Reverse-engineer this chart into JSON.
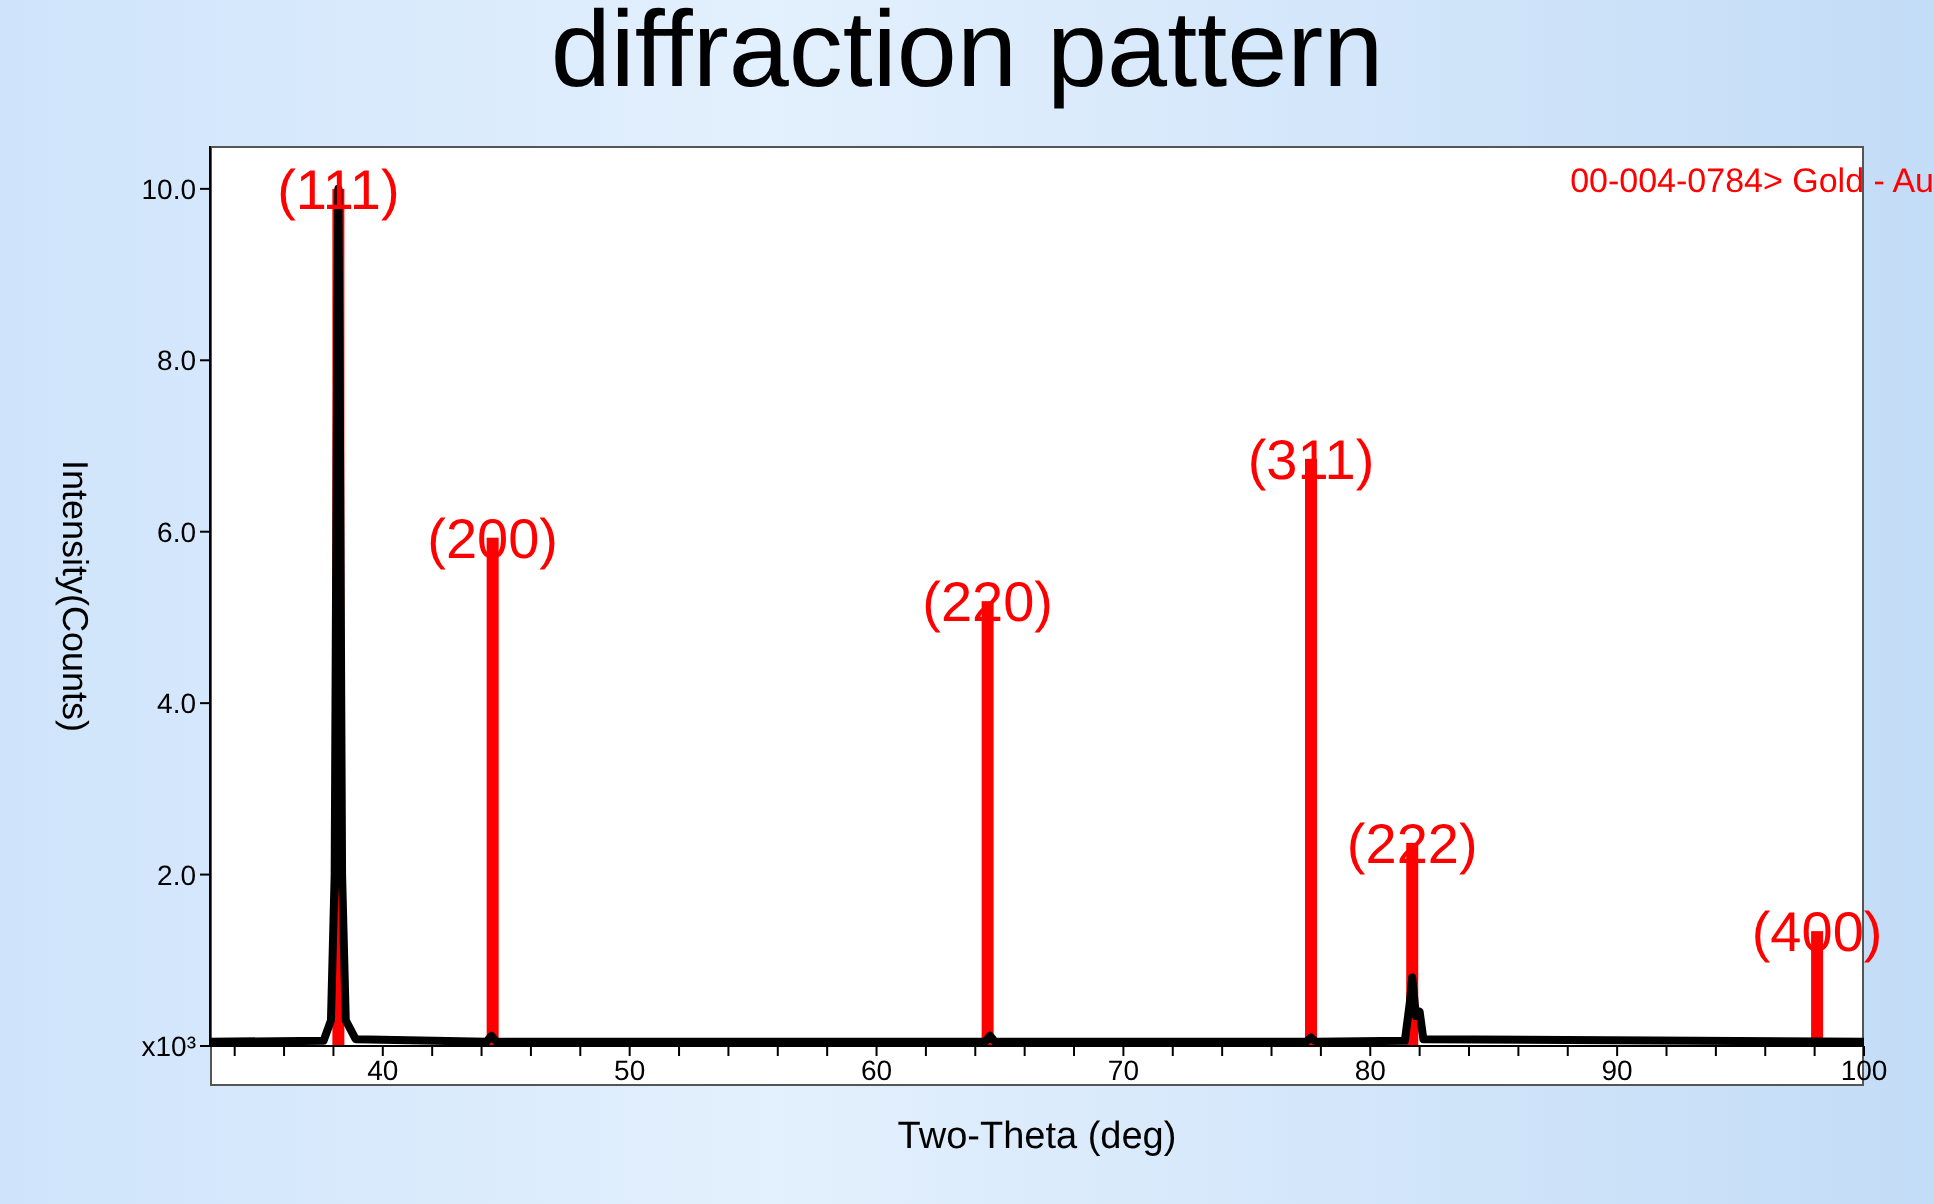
{
  "chart_data": {
    "type": "line",
    "title": "diffraction pattern",
    "xlabel": "Two-Theta (deg)",
    "ylabel": "Intensity(Counts)",
    "xlim": [
      33,
      100
    ],
    "xticks": [
      {
        "value": 34,
        "label": null
      },
      {
        "value": 36,
        "label": null
      },
      {
        "value": 38,
        "label": null
      },
      40,
      {
        "value": 42,
        "label": null
      },
      {
        "value": 44,
        "label": null
      },
      {
        "value": 46,
        "label": null
      },
      {
        "value": 48,
        "label": null
      },
      50,
      {
        "value": 52,
        "label": null
      },
      {
        "value": 54,
        "label": null
      },
      {
        "value": 56,
        "label": null
      },
      {
        "value": 58,
        "label": null
      },
      60,
      {
        "value": 62,
        "label": null
      },
      {
        "value": 64,
        "label": null
      },
      {
        "value": 66,
        "label": null
      },
      {
        "value": 68,
        "label": null
      },
      70,
      {
        "value": 72,
        "label": null
      },
      {
        "value": 74,
        "label": null
      },
      {
        "value": 76,
        "label": null
      },
      {
        "value": 78,
        "label": null
      },
      80,
      {
        "value": 82,
        "label": null
      },
      {
        "value": 84,
        "label": null
      },
      {
        "value": 86,
        "label": null
      },
      {
        "value": 88,
        "label": null
      },
      90,
      {
        "value": 92,
        "label": null
      },
      {
        "value": 94,
        "label": null
      },
      {
        "value": 96,
        "label": null
      },
      {
        "value": 98,
        "label": null
      },
      100
    ],
    "ylim": [
      0,
      10.5
    ],
    "yticks": [
      {
        "value": 0,
        "label": "x10³"
      },
      {
        "value": 2,
        "label": "2.0"
      },
      {
        "value": 4,
        "label": "4.0"
      },
      {
        "value": 6,
        "label": "6.0"
      },
      {
        "value": 8,
        "label": "8.0"
      },
      {
        "value": 10,
        "label": "10.0"
      }
    ],
    "grid": false,
    "legend": "top right",
    "marker": "none",
    "line_style": "solid",
    "annotations": [
      {
        "text": "(111)",
        "x": 38.2,
        "y": 10
      },
      {
        "text": "(200)",
        "x": 44.45,
        "y": 5.93
      },
      {
        "text": "(220)",
        "x": 64.5,
        "y": 5.19
      },
      {
        "text": "(311)",
        "x": 77.6,
        "y": 6.85
      },
      {
        "text": "(222)",
        "x": 81.7,
        "y": 2.37
      },
      {
        "text": "(400)",
        "x": 98.1,
        "y": 1.34
      }
    ],
    "series": [
      {
        "color": "#000000",
        "x": [
          33,
          37.6,
          37.9,
          38.05,
          38.15,
          38.2,
          38.25,
          38.35,
          38.5,
          38.9,
          44.2,
          44.4,
          44.6,
          64.4,
          64.6,
          64.8,
          77.4,
          77.6,
          77.8,
          81.4,
          81.6,
          81.7,
          81.85,
          82.0,
          82.15,
          100
        ],
        "values": [
          0.05,
          0.06,
          0.3,
          2,
          8,
          10,
          8,
          2,
          0.3,
          0.08,
          0.05,
          0.12,
          0.05,
          0.05,
          0.12,
          0.05,
          0.05,
          0.1,
          0.05,
          0.06,
          0.5,
          0.8,
          0.35,
          0.4,
          0.08,
          0.05
        ]
      },
      {
        "type": "bar",
        "name": "00-004-0784> Gold - Au",
        "color": "#ff0000",
        "x": [
          38.2,
          44.45,
          64.5,
          77.6,
          81.7,
          98.1
        ],
        "values": [
          10,
          5.93,
          5.19,
          6.85,
          2.37,
          1.34
        ]
      }
    ]
  }
}
